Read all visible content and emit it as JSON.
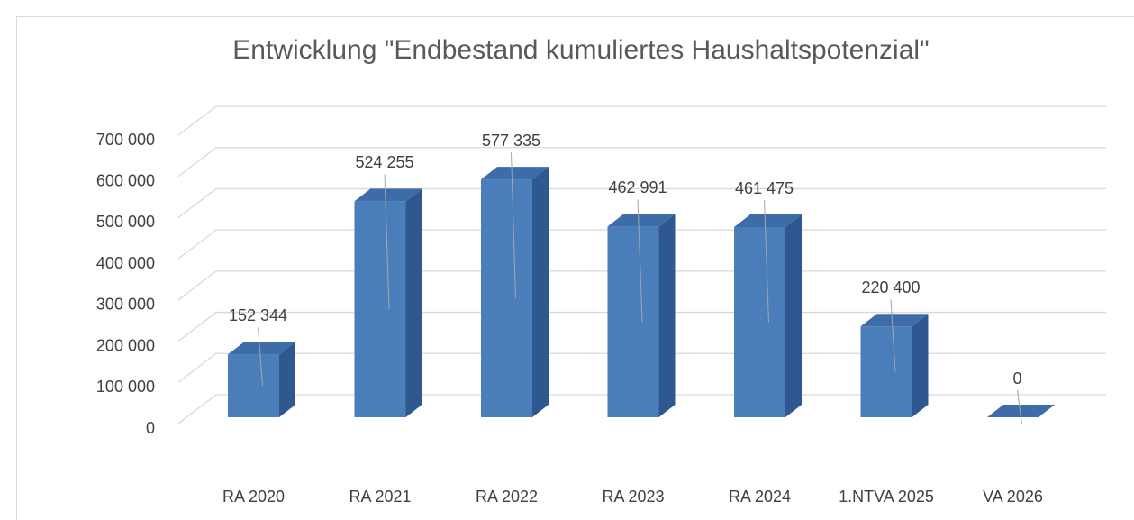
{
  "chart_data": {
    "type": "bar3d",
    "title": "Entwicklung \"Endbestand kumuliertes Haushaltspotenzial\"",
    "categories": [
      "RA 2020",
      "RA 2021",
      "RA 2022",
      "RA 2023",
      "RA 2024",
      "1.NTVA 2025",
      "VA 2026"
    ],
    "values": [
      152344,
      524255,
      577335,
      462991,
      461475,
      220400,
      0
    ],
    "value_labels": [
      "152 344",
      "524 255",
      "577 335",
      "462 991",
      "461 475",
      "220 400",
      "0"
    ],
    "color": "#4a7ebb",
    "ylim": [
      0,
      700000
    ],
    "yticks": [
      0,
      {
        "value": 100000,
        "label": "100 000"
      },
      {
        "value": 200000,
        "label": "200 000"
      },
      {
        "value": 300000,
        "label": "300 000"
      },
      {
        "value": 400000,
        "label": "400 000"
      },
      {
        "value": 500000,
        "label": "500 000"
      },
      {
        "value": 600000,
        "label": "600 000"
      },
      {
        "value": 700000,
        "label": "700 000"
      }
    ],
    "grid": true
  }
}
